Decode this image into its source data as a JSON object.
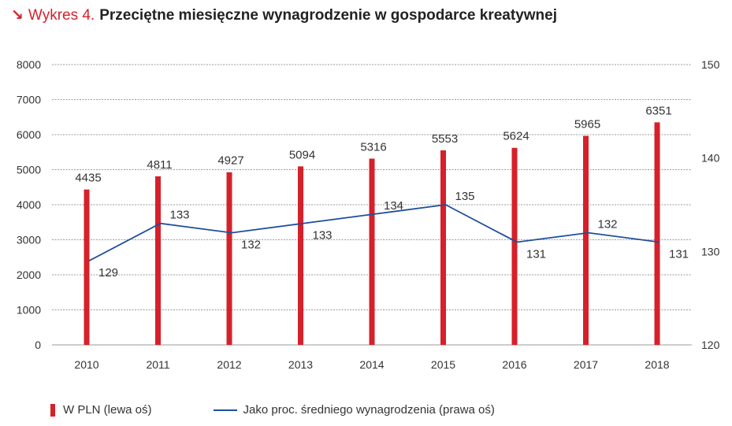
{
  "header": {
    "arrow": "↘",
    "prefix": "Wykres 4.",
    "title": "Przeciętne miesięczne wynagrodzenie w gospodarce kreatywnej"
  },
  "chart_data": {
    "type": "bar+line",
    "categories": [
      "2010",
      "2011",
      "2012",
      "2013",
      "2014",
      "2015",
      "2016",
      "2017",
      "2018"
    ],
    "series": [
      {
        "name": "W PLN (lewa oś)",
        "type": "bar",
        "axis": "left",
        "color": "#d6202a",
        "values": [
          4435,
          4811,
          4927,
          5094,
          5316,
          5553,
          5624,
          5965,
          6351
        ]
      },
      {
        "name": "Jako proc. średniego wynagrodzenia (prawa oś)",
        "type": "line",
        "axis": "right",
        "color": "#1f4e9c",
        "values": [
          129,
          133,
          132,
          133,
          134,
          135,
          131,
          132,
          131
        ]
      }
    ],
    "y_left": {
      "min": 0,
      "max": 8000,
      "ticks": [
        "0",
        "1000",
        "2000",
        "3000",
        "4000",
        "5000",
        "6000",
        "7000",
        "8000"
      ]
    },
    "y_right": {
      "min": 120,
      "max": 150,
      "ticks": [
        "120",
        "130",
        "140",
        "150"
      ]
    },
    "grid": true,
    "legend_position": "bottom-left"
  }
}
